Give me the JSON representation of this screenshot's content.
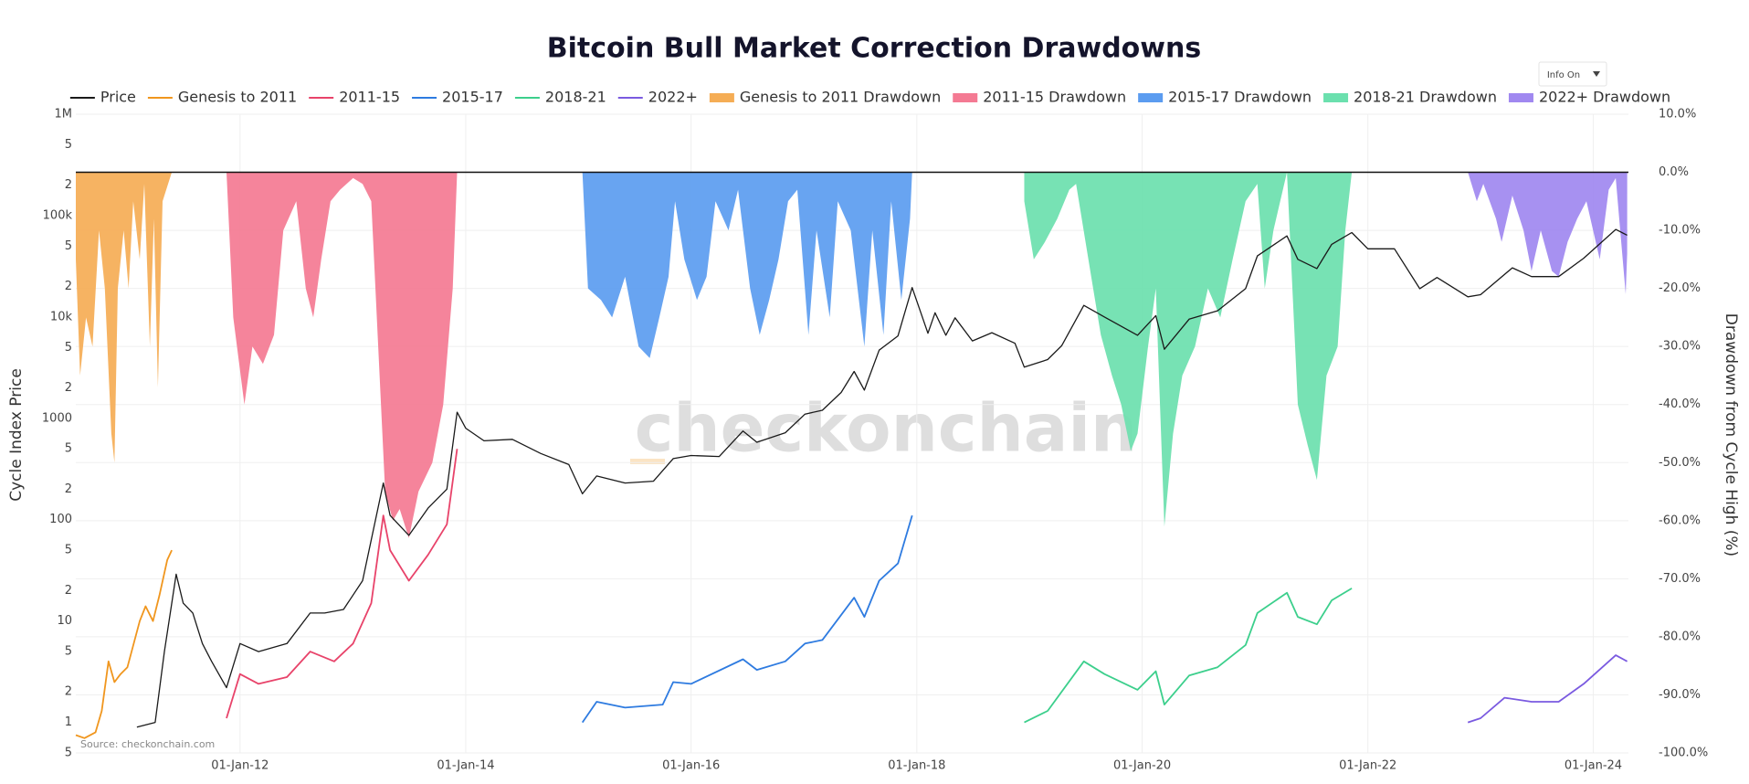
{
  "chart_data": {
    "type": "line",
    "title": "Bitcoin Bull Market Correction Drawdowns",
    "source": "Source: checkonchain.com",
    "watermark": "checkonchain",
    "info_button": "Info On",
    "ylabel": "Cycle Index Price",
    "y2label": "Drawdown from Cycle High (%)",
    "yscale": "log",
    "grid": true,
    "legend": "top",
    "xlim": [
      "2010-07-18",
      "2024-04-24"
    ],
    "xticks": [
      {
        "value": "2012-01-01",
        "label": "01-Jan-12"
      },
      {
        "value": "2014-01-01",
        "label": "01-Jan-14"
      },
      {
        "value": "2016-01-01",
        "label": "01-Jan-16"
      },
      {
        "value": "2018-01-01",
        "label": "01-Jan-18"
      },
      {
        "value": "2020-01-01",
        "label": "01-Jan-20"
      },
      {
        "value": "2022-01-01",
        "label": "01-Jan-22"
      },
      {
        "value": "2024-01-01",
        "label": "01-Jan-24"
      }
    ],
    "ylim": [
      0.5,
      1000000
    ],
    "yticks": [
      {
        "value": 0.5,
        "label": "5"
      },
      1,
      2,
      5,
      10,
      {
        "value": 20,
        "label": "2"
      },
      {
        "value": 50,
        "label": "5"
      },
      100,
      {
        "value": 200,
        "label": "2"
      },
      {
        "value": 500,
        "label": "5"
      },
      1000,
      {
        "value": 2000,
        "label": "2"
      },
      {
        "value": 5000,
        "label": "5"
      },
      {
        "value": 10000,
        "label": "10k"
      },
      {
        "value": 20000,
        "label": "2"
      },
      {
        "value": 50000,
        "label": "5"
      },
      {
        "value": 100000,
        "label": "100k"
      },
      {
        "value": 200000,
        "label": "2"
      },
      {
        "value": 500000,
        "label": "5"
      },
      {
        "value": 1000000,
        "label": "1M"
      }
    ],
    "y2lim": [
      -100,
      10
    ],
    "y2ticks": [
      {
        "value": 10,
        "label": "10.0%"
      },
      {
        "value": 0,
        "label": "0.0%"
      },
      {
        "value": -10,
        "label": "-10.0%"
      },
      {
        "value": -20,
        "label": "-20.0%"
      },
      {
        "value": -30,
        "label": "-30.0%"
      },
      {
        "value": -40,
        "label": "-40.0%"
      },
      {
        "value": -50,
        "label": "-50.0%"
      },
      {
        "value": -60,
        "label": "-60.0%"
      },
      {
        "value": -70,
        "label": "-70.0%"
      },
      {
        "value": -80,
        "label": "-80.0%"
      },
      {
        "value": -90,
        "label": "-90.0%"
      },
      {
        "value": -100,
        "label": "-100.0%"
      }
    ],
    "series": [
      {
        "name": "Price",
        "color": "#1a1a1a",
        "x": [
          "2011-02-01",
          "2011-04-01",
          "2011-05-01",
          "2011-06-08",
          "2011-07-01",
          "2011-08-01",
          "2011-09-01",
          "2011-10-01",
          "2011-11-18",
          "2012-01-01",
          "2012-03-01",
          "2012-06-01",
          "2012-08-15",
          "2012-10-01",
          "2012-12-01",
          "2013-02-01",
          "2013-04-09",
          "2013-05-01",
          "2013-07-01",
          "2013-09-01",
          "2013-11-01",
          "2013-12-04",
          "2014-01-01",
          "2014-03-01",
          "2014-06-01",
          "2014-09-01",
          "2014-12-01",
          "2015-01-14",
          "2015-03-01",
          "2015-06-01",
          "2015-09-01",
          "2015-11-04",
          "2016-01-01",
          "2016-04-01",
          "2016-06-17",
          "2016-08-01",
          "2016-11-01",
          "2017-01-04",
          "2017-03-01",
          "2017-05-01",
          "2017-06-12",
          "2017-07-15",
          "2017-09-01",
          "2017-11-01",
          "2017-12-17",
          "2018-02-06",
          "2018-03-01",
          "2018-04-05",
          "2018-05-05",
          "2018-06-30",
          "2018-09-01",
          "2018-11-15",
          "2018-12-15",
          "2019-03-01",
          "2019-04-15",
          "2019-06-26",
          "2019-09-01",
          "2019-12-17",
          "2020-02-14",
          "2020-03-13",
          "2020-06-01",
          "2020-09-01",
          "2020-12-01",
          "2021-01-08",
          "2021-04-14",
          "2021-05-19",
          "2021-07-20",
          "2021-09-06",
          "2021-11-10",
          "2022-01-01",
          "2022-03-28",
          "2022-06-18",
          "2022-08-13",
          "2022-11-21",
          "2023-01-01",
          "2023-04-14",
          "2023-06-15",
          "2023-09-11",
          "2023-12-01",
          "2024-03-14",
          "2024-04-20"
        ],
        "values": [
          0.9,
          1.0,
          5,
          29,
          15,
          12,
          6,
          4,
          2.2,
          6,
          5,
          6,
          12,
          12,
          13,
          25,
          230,
          110,
          70,
          130,
          200,
          1150,
          800,
          600,
          620,
          450,
          350,
          180,
          270,
          230,
          240,
          400,
          430,
          420,
          750,
          580,
          720,
          1100,
          1200,
          1800,
          2900,
          1900,
          4700,
          6500,
          19500,
          6900,
          11000,
          6600,
          9800,
          5800,
          7000,
          5500,
          3200,
          3800,
          5200,
          13000,
          10000,
          6600,
          10300,
          4800,
          9500,
          11500,
          19000,
          40000,
          63000,
          37000,
          30000,
          52000,
          68000,
          47000,
          47000,
          19000,
          24500,
          15800,
          16600,
          30500,
          25000,
          25000,
          38000,
          73000,
          64000
        ]
      },
      {
        "name": "Genesis to 2011",
        "color": "#f0961e",
        "x": [
          "2010-07-18",
          "2010-08-15",
          "2010-09-20",
          "2010-10-10",
          "2010-11-01",
          "2010-11-20",
          "2010-12-10",
          "2011-01-01",
          "2011-02-10",
          "2011-03-01",
          "2011-03-25",
          "2011-04-15",
          "2011-05-10",
          "2011-05-25"
        ],
        "values": [
          0.75,
          0.7,
          0.8,
          1.3,
          4,
          2.5,
          3,
          3.5,
          10,
          14,
          10,
          18,
          40,
          50
        ]
      },
      {
        "name": "2011-15",
        "color": "#e8436a",
        "x": [
          "2011-11-18",
          "2012-01-01",
          "2012-03-01",
          "2012-06-01",
          "2012-08-15",
          "2012-11-01",
          "2013-01-01",
          "2013-03-01",
          "2013-04-09",
          "2013-05-01",
          "2013-07-01",
          "2013-09-01",
          "2013-11-01",
          "2013-12-04"
        ],
        "values": [
          1.1,
          3,
          2.4,
          2.8,
          5,
          4,
          6,
          15,
          110,
          50,
          25,
          45,
          90,
          500
        ]
      },
      {
        "name": "2015-17",
        "color": "#2e7be0",
        "x": [
          "2015-01-14",
          "2015-03-01",
          "2015-06-01",
          "2015-10-01",
          "2015-11-04",
          "2016-01-01",
          "2016-06-17",
          "2016-08-01",
          "2016-11-01",
          "2017-01-04",
          "2017-03-01",
          "2017-06-12",
          "2017-07-15",
          "2017-09-01",
          "2017-11-01",
          "2017-12-17"
        ],
        "values": [
          1.0,
          1.6,
          1.4,
          1.5,
          2.5,
          2.4,
          4.2,
          3.3,
          4,
          6,
          6.5,
          17,
          11,
          25,
          37,
          110
        ]
      },
      {
        "name": "2018-21",
        "color": "#3ccf8c",
        "x": [
          "2018-12-15",
          "2019-03-01",
          "2019-06-26",
          "2019-09-01",
          "2019-12-17",
          "2020-02-14",
          "2020-03-13",
          "2020-06-01",
          "2020-09-01",
          "2020-12-01",
          "2021-01-08",
          "2021-04-14",
          "2021-05-19",
          "2021-07-20",
          "2021-09-06",
          "2021-11-10"
        ],
        "values": [
          1.0,
          1.3,
          4,
          3,
          2.1,
          3.2,
          1.5,
          2.9,
          3.5,
          5.8,
          12,
          19,
          11,
          9.3,
          16,
          21
        ]
      },
      {
        "name": "2022+",
        "color": "#7a5ae0",
        "x": [
          "2022-11-21",
          "2023-01-01",
          "2023-03-20",
          "2023-06-15",
          "2023-09-11",
          "2023-12-01",
          "2024-03-14",
          "2024-04-20"
        ],
        "values": [
          1.0,
          1.1,
          1.75,
          1.6,
          1.6,
          2.4,
          4.6,
          4.0
        ]
      },
      {
        "name": "Genesis to 2011 Drawdown",
        "color": "#f5ad55",
        "type": "area",
        "axis": "y2",
        "x": [
          "2010-07-18",
          "2010-08-01",
          "2010-08-20",
          "2010-09-10",
          "2010-10-01",
          "2010-10-20",
          "2010-11-10",
          "2010-11-20",
          "2010-12-01",
          "2010-12-20",
          "2011-01-05",
          "2011-01-20",
          "2011-02-10",
          "2011-02-25",
          "2011-03-15",
          "2011-03-28",
          "2011-04-10",
          "2011-04-25",
          "2011-05-25"
        ],
        "values": [
          -15,
          -35,
          -25,
          -30,
          -10,
          -20,
          -45,
          -50,
          -20,
          -10,
          -20,
          -5,
          -15,
          -2,
          -30,
          -8,
          -37,
          -5,
          0
        ]
      },
      {
        "name": "2011-15 Drawdown",
        "color": "#f47a93",
        "type": "area",
        "axis": "y2",
        "x": [
          "2011-11-18",
          "2011-12-10",
          "2012-01-15",
          "2012-02-10",
          "2012-03-15",
          "2012-04-20",
          "2012-05-20",
          "2012-07-01",
          "2012-08-01",
          "2012-08-25",
          "2012-09-20",
          "2012-10-20",
          "2012-11-20",
          "2013-01-01",
          "2013-02-01",
          "2013-03-01",
          "2013-04-15",
          "2013-05-10",
          "2013-06-01",
          "2013-07-01",
          "2013-08-01",
          "2013-09-15",
          "2013-10-20",
          "2013-11-20",
          "2013-12-04"
        ],
        "values": [
          0,
          -25,
          -40,
          -30,
          -33,
          -28,
          -10,
          -5,
          -20,
          -25,
          -15,
          -5,
          -3,
          -1,
          -2,
          -5,
          -55,
          -60,
          -58,
          -63,
          -55,
          -50,
          -40,
          -20,
          0
        ]
      },
      {
        "name": "2015-17 Drawdown",
        "color": "#5b9cf0",
        "type": "area",
        "axis": "y2",
        "x": [
          "2015-01-14",
          "2015-02-01",
          "2015-03-15",
          "2015-04-20",
          "2015-06-01",
          "2015-07-15",
          "2015-08-20",
          "2015-09-20",
          "2015-10-20",
          "2015-11-10",
          "2015-12-10",
          "2016-01-20",
          "2016-02-20",
          "2016-03-20",
          "2016-05-01",
          "2016-06-01",
          "2016-07-10",
          "2016-08-10",
          "2016-09-10",
          "2016-10-10",
          "2016-11-10",
          "2016-12-10",
          "2017-01-15",
          "2017-02-10",
          "2017-03-25",
          "2017-04-20",
          "2017-06-01",
          "2017-07-15",
          "2017-08-10",
          "2017-09-15",
          "2017-10-10",
          "2017-11-12",
          "2017-12-10",
          "2017-12-17"
        ],
        "values": [
          0,
          -20,
          -22,
          -25,
          -18,
          -30,
          -32,
          -25,
          -18,
          -5,
          -15,
          -22,
          -18,
          -5,
          -10,
          -3,
          -20,
          -28,
          -22,
          -15,
          -5,
          -3,
          -28,
          -10,
          -25,
          -5,
          -10,
          -30,
          -10,
          -28,
          -5,
          -22,
          -8,
          0
        ]
      },
      {
        "name": "2018-21 Drawdown",
        "color": "#6be0ae",
        "type": "area",
        "axis": "y2",
        "x": [
          "2018-12-15",
          "2019-01-15",
          "2019-02-20",
          "2019-04-01",
          "2019-05-10",
          "2019-06-01",
          "2019-07-20",
          "2019-08-20",
          "2019-09-25",
          "2019-10-25",
          "2019-11-25",
          "2019-12-17",
          "2020-01-20",
          "2020-02-14",
          "2020-03-13",
          "2020-04-10",
          "2020-05-10",
          "2020-06-20",
          "2020-08-01",
          "2020-09-10",
          "2020-10-20",
          "2020-12-01",
          "2021-01-08",
          "2021-02-01",
          "2021-03-01",
          "2021-04-14",
          "2021-05-19",
          "2021-06-20",
          "2021-07-20",
          "2021-08-20",
          "2021-09-25",
          "2021-10-20",
          "2021-11-10"
        ],
        "values": [
          -5,
          -15,
          -12,
          -8,
          -3,
          -2,
          -18,
          -28,
          -35,
          -40,
          -48,
          -45,
          -30,
          -20,
          -61,
          -45,
          -35,
          -30,
          -20,
          -25,
          -15,
          -5,
          -2,
          -20,
          -10,
          0,
          -40,
          -47,
          -53,
          -35,
          -30,
          -10,
          0
        ]
      },
      {
        "name": "2022+ Drawdown",
        "color": "#a088f0",
        "type": "area",
        "axis": "y2",
        "x": [
          "2022-11-21",
          "2022-12-20",
          "2023-01-10",
          "2023-02-20",
          "2023-03-10",
          "2023-04-14",
          "2023-05-20",
          "2023-06-15",
          "2023-07-15",
          "2023-08-20",
          "2023-09-11",
          "2023-10-10",
          "2023-11-10",
          "2023-12-10",
          "2024-01-22",
          "2024-02-20",
          "2024-03-14",
          "2024-04-15",
          "2024-04-20"
        ],
        "values": [
          0,
          -5,
          -2,
          -8,
          -12,
          -4,
          -10,
          -17,
          -10,
          -17,
          -18,
          -12,
          -8,
          -5,
          -15,
          -3,
          -1,
          -21,
          -14
        ]
      }
    ]
  }
}
